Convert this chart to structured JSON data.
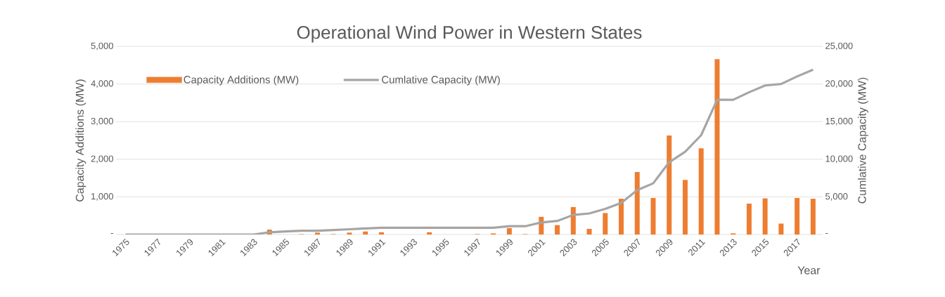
{
  "chart_data": {
    "type": "bar",
    "title": "Operational Wind Power in Western States",
    "xlabel": "Year",
    "ylabel": "Capacity Additions (MW)",
    "y2label": "Cumlative Capacity (MW)",
    "categories": [
      "1975",
      null,
      "1977",
      null,
      "1979",
      null,
      "1981",
      null,
      "1983",
      null,
      "1985",
      null,
      "1987",
      null,
      "1989",
      null,
      "1991",
      null,
      "1993",
      null,
      "1995",
      null,
      "1997",
      null,
      "1999",
      null,
      "2001",
      null,
      "2003",
      null,
      "2005",
      null,
      "2007",
      null,
      "2009",
      null,
      "2011",
      null,
      "2013",
      null,
      "2015",
      null,
      "2017",
      null
    ],
    "series": [
      {
        "name": "Capacity Additions (MW)",
        "color": "#ed7d31",
        "values": [
          0,
          0,
          0,
          0,
          0,
          0,
          0,
          0,
          0,
          130,
          0,
          10,
          50,
          10,
          50,
          80,
          60,
          0,
          0,
          60,
          0,
          0,
          10,
          30,
          170,
          10,
          470,
          250,
          730,
          150,
          570,
          950,
          1660,
          970,
          2630,
          1450,
          2290,
          4660,
          30,
          820,
          960,
          290,
          970,
          950
        ]
      },
      {
        "name": "Cumlative Capacity (MW)",
        "type": "line",
        "axis": "y2",
        "color": "#a5a5a5",
        "values": [
          0,
          0,
          0,
          0,
          0,
          0,
          0,
          0,
          0,
          300,
          400,
          500,
          500,
          600,
          700,
          800,
          900,
          900,
          900,
          900,
          900,
          900,
          900,
          900,
          1100,
          1100,
          1600,
          1800,
          2600,
          2800,
          3400,
          4200,
          5900,
          6800,
          9600,
          11000,
          13200,
          17900,
          17900,
          18900,
          19800,
          20000,
          21000,
          21900
        ]
      }
    ],
    "ylim": [
      0,
      5000
    ],
    "yticks": [
      {
        "value": 0,
        "label": "-"
      },
      {
        "value": 1000,
        "label": "1,000"
      },
      {
        "value": 2000,
        "label": "2,000"
      },
      {
        "value": 3000,
        "label": "3,000"
      },
      {
        "value": 4000,
        "label": "4,000"
      },
      {
        "value": 5000,
        "label": "5,000"
      }
    ],
    "y2lim": [
      0,
      25000
    ],
    "y2ticks": [
      {
        "value": 0,
        "label": "-"
      },
      {
        "value": 5000,
        "label": "5,000"
      },
      {
        "value": 10000,
        "label": "10,000"
      },
      {
        "value": 15000,
        "label": "15,000"
      },
      {
        "value": 20000,
        "label": "20,000"
      },
      {
        "value": 25000,
        "label": "25,000"
      }
    ],
    "grid": "y",
    "legend": "top left"
  }
}
